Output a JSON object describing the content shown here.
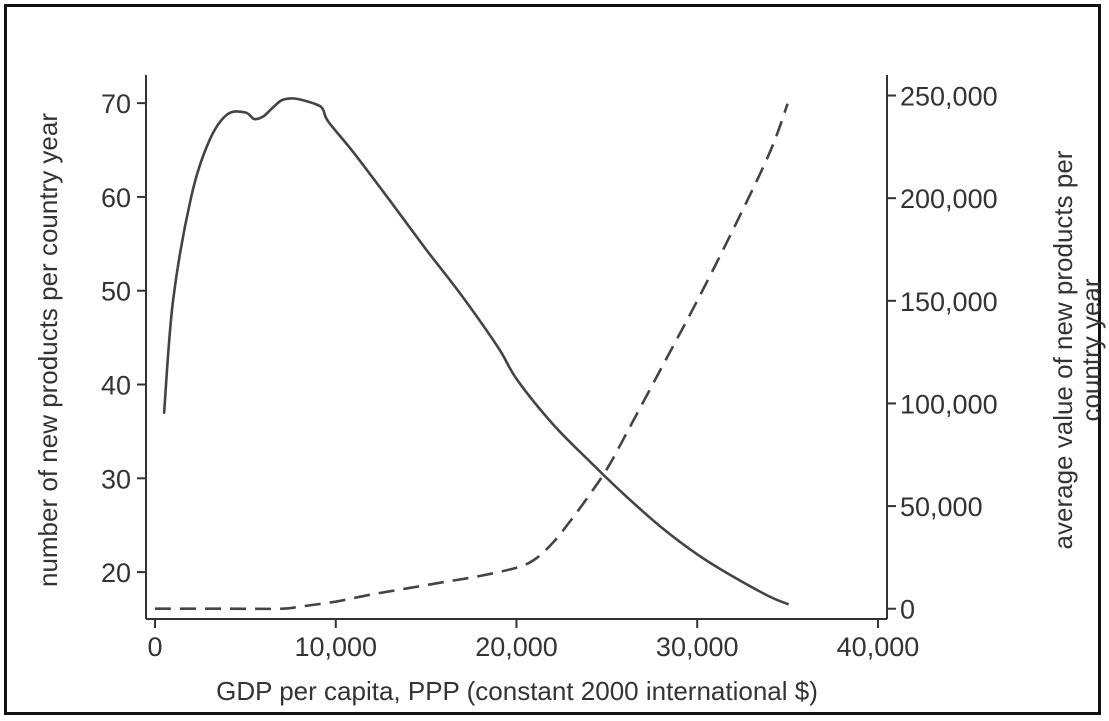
{
  "chart_data": {
    "type": "line",
    "title": "",
    "xlabel": "GDP per capita, PPP (constant 2000 international $)",
    "ylabel_left": "number of new products per country year",
    "ylabel_right_lines": [
      "average value of new products per",
      "country year"
    ],
    "xlim": [
      -500,
      40500
    ],
    "ylim_left": [
      15,
      73
    ],
    "ylim_right": [
      -5000,
      260000
    ],
    "x_ticks": [
      {
        "value": 0,
        "label": "0"
      },
      {
        "value": 10000,
        "label": "10,000"
      },
      {
        "value": 20000,
        "label": "20,000"
      },
      {
        "value": 30000,
        "label": "30,000"
      },
      {
        "value": 40000,
        "label": "40,000"
      }
    ],
    "y_left_ticks": [
      {
        "value": 20,
        "label": "20"
      },
      {
        "value": 30,
        "label": "30"
      },
      {
        "value": 40,
        "label": "40"
      },
      {
        "value": 50,
        "label": "50"
      },
      {
        "value": 60,
        "label": "60"
      },
      {
        "value": 70,
        "label": "70"
      }
    ],
    "y_right_ticks": [
      {
        "value": 0,
        "label": "0"
      },
      {
        "value": 50000,
        "label": "50,000"
      },
      {
        "value": 100000,
        "label": "100,000"
      },
      {
        "value": 150000,
        "label": "150,000"
      },
      {
        "value": 200000,
        "label": "200,000"
      },
      {
        "value": 250000,
        "label": "250,000"
      }
    ],
    "grid": false,
    "legend": "none",
    "series": [
      {
        "axis": "left",
        "style": "solid",
        "color": "#444444",
        "x": [
          500,
          1000,
          2000,
          3000,
          4000,
          5000,
          5500,
          6000,
          6500,
          7000,
          7500,
          8000,
          9000,
          9300,
          9600,
          11000,
          13000,
          15000,
          17000,
          19000,
          20000,
          22000,
          24000,
          26000,
          28000,
          30000,
          32000,
          34000,
          35000
        ],
        "y": [
          37,
          49,
          60,
          66,
          68.8,
          69,
          68.3,
          68.6,
          69.5,
          70.3,
          70.5,
          70.4,
          69.8,
          69.3,
          68,
          64.7,
          59.6,
          54.4,
          49.4,
          43.9,
          40.6,
          35.8,
          31.9,
          28.2,
          24.8,
          21.9,
          19.5,
          17.4,
          16.6
        ]
      },
      {
        "axis": "right",
        "style": "dashed",
        "color": "#444444",
        "x": [
          0,
          4000,
          7000,
          8000,
          10000,
          12000,
          14000,
          16000,
          18000,
          20000,
          21000,
          22000,
          23000,
          24000,
          25000,
          26000,
          28000,
          30000,
          32000,
          34000,
          35000
        ],
        "y": [
          0,
          0,
          0,
          1000,
          3500,
          7000,
          10000,
          13000,
          16000,
          20000,
          24000,
          32000,
          43000,
          55000,
          68000,
          84000,
          117000,
          150000,
          185000,
          222000,
          246000
        ]
      }
    ]
  }
}
